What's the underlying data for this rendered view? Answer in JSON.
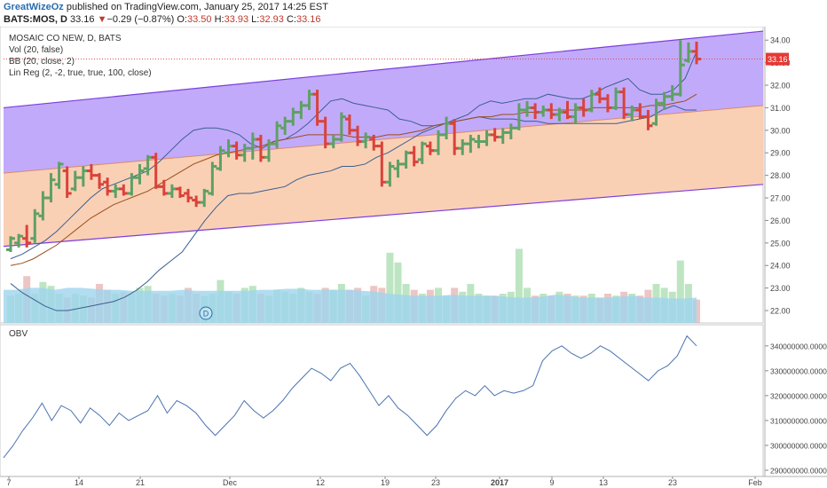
{
  "header": {
    "author": "GreatWizeOz",
    "published_text": "published on TradingView.com, January 25, 2017 14:25 EST",
    "symbol": "BATS:MOS, D",
    "last": "33.16",
    "change_arrow": "▼",
    "change": "−0.29 (−0.87%)",
    "o_label": "O:",
    "o_val": "33.50",
    "h_label": "H:",
    "h_val": "33.93",
    "l_label": "L:",
    "l_val": "32.93",
    "c_label": "C:",
    "c_val": "33.16"
  },
  "legend": {
    "title": "MOSAIC CO NEW, D, BATS",
    "vol": "Vol (20, false)",
    "bb": "BB (20, close, 2)",
    "linreg": "Lin Reg (2, -2, true, true, 100, close)"
  },
  "obv_label": "OBV",
  "dividend_marker": "D",
  "colors": {
    "up": "#5fa065",
    "down": "#d9433a",
    "upper_channel": "#b79bf9",
    "lower_channel": "#f9c8a8",
    "channel_line": "#7b3ee0",
    "bb_line": "#3a5f8f",
    "mid_line": "#9a4e1a",
    "vol_avg": "#9fd5ee",
    "obv_line": "#4a72b0",
    "price_tag": "#e53935"
  },
  "chart_data": [
    {
      "type": "candlestick",
      "title": "MOSAIC CO NEW, D, BATS",
      "x_tick_labels": [
        "7",
        "14",
        "21",
        "Dec",
        "12",
        "19",
        "23",
        "2017",
        "9",
        "13",
        "23",
        "Feb"
      ],
      "y_tick_labels": [
        "34.00",
        "33.00",
        "32.00",
        "31.00",
        "30.00",
        "29.00",
        "28.00",
        "27.00",
        "26.00",
        "25.00",
        "24.00",
        "23.00",
        "22.00"
      ],
      "ylim": [
        21.45,
        34.6
      ],
      "last_price_label": "33.16",
      "bars": [
        {
          "o": 24.7,
          "h": 25.3,
          "l": 24.6,
          "c": 25.2
        },
        {
          "o": 25.0,
          "h": 25.4,
          "l": 24.8,
          "c": 25.3
        },
        {
          "o": 25.2,
          "h": 25.8,
          "l": 24.8,
          "c": 25.0
        },
        {
          "o": 25.2,
          "h": 26.5,
          "l": 25.0,
          "c": 26.3
        },
        {
          "o": 26.2,
          "h": 27.3,
          "l": 26.0,
          "c": 27.0
        },
        {
          "o": 27.0,
          "h": 28.1,
          "l": 26.8,
          "c": 27.8
        },
        {
          "o": 27.6,
          "h": 28.6,
          "l": 27.4,
          "c": 28.5
        },
        {
          "o": 28.2,
          "h": 28.4,
          "l": 27.0,
          "c": 27.2
        },
        {
          "o": 27.4,
          "h": 28.2,
          "l": 27.3,
          "c": 27.9
        },
        {
          "o": 27.9,
          "h": 28.4,
          "l": 27.5,
          "c": 28.2
        },
        {
          "o": 28.2,
          "h": 28.5,
          "l": 27.8,
          "c": 28.0
        },
        {
          "o": 28.0,
          "h": 28.1,
          "l": 27.4,
          "c": 27.6
        },
        {
          "o": 27.7,
          "h": 27.9,
          "l": 27.1,
          "c": 27.3
        },
        {
          "o": 27.3,
          "h": 27.6,
          "l": 27.0,
          "c": 27.4
        },
        {
          "o": 27.4,
          "h": 27.6,
          "l": 27.1,
          "c": 27.2
        },
        {
          "o": 27.2,
          "h": 28.1,
          "l": 27.1,
          "c": 27.9
        },
        {
          "o": 27.9,
          "h": 28.5,
          "l": 27.6,
          "c": 28.2
        },
        {
          "o": 28.3,
          "h": 28.9,
          "l": 28.0,
          "c": 28.8
        },
        {
          "o": 28.8,
          "h": 29.0,
          "l": 27.4,
          "c": 27.5
        },
        {
          "o": 27.5,
          "h": 27.8,
          "l": 27.1,
          "c": 27.2
        },
        {
          "o": 27.2,
          "h": 27.6,
          "l": 27.0,
          "c": 27.4
        },
        {
          "o": 27.4,
          "h": 27.5,
          "l": 27.0,
          "c": 27.1
        },
        {
          "o": 27.2,
          "h": 27.4,
          "l": 26.8,
          "c": 27.0
        },
        {
          "o": 26.9,
          "h": 27.1,
          "l": 26.6,
          "c": 26.8
        },
        {
          "o": 26.8,
          "h": 27.4,
          "l": 26.6,
          "c": 27.3
        },
        {
          "o": 27.2,
          "h": 28.6,
          "l": 27.1,
          "c": 28.4
        },
        {
          "o": 28.3,
          "h": 29.3,
          "l": 28.2,
          "c": 29.1
        },
        {
          "o": 29.0,
          "h": 29.6,
          "l": 28.8,
          "c": 29.3
        },
        {
          "o": 29.3,
          "h": 29.5,
          "l": 28.7,
          "c": 28.9
        },
        {
          "o": 28.9,
          "h": 29.4,
          "l": 28.6,
          "c": 29.2
        },
        {
          "o": 29.2,
          "h": 29.9,
          "l": 28.7,
          "c": 29.6
        },
        {
          "o": 29.6,
          "h": 29.8,
          "l": 28.6,
          "c": 28.8
        },
        {
          "o": 28.8,
          "h": 29.6,
          "l": 28.6,
          "c": 29.4
        },
        {
          "o": 29.4,
          "h": 30.4,
          "l": 29.2,
          "c": 30.2
        },
        {
          "o": 30.1,
          "h": 30.6,
          "l": 29.8,
          "c": 30.4
        },
        {
          "o": 30.4,
          "h": 31.0,
          "l": 30.2,
          "c": 30.8
        },
        {
          "o": 30.8,
          "h": 31.3,
          "l": 30.5,
          "c": 31.1
        },
        {
          "o": 31.1,
          "h": 31.8,
          "l": 30.9,
          "c": 31.6
        },
        {
          "o": 31.6,
          "h": 31.8,
          "l": 30.2,
          "c": 30.4
        },
        {
          "o": 30.4,
          "h": 30.6,
          "l": 29.2,
          "c": 29.4
        },
        {
          "o": 29.4,
          "h": 29.8,
          "l": 29.2,
          "c": 29.6
        },
        {
          "o": 29.6,
          "h": 30.8,
          "l": 29.5,
          "c": 30.6
        },
        {
          "o": 30.5,
          "h": 30.7,
          "l": 29.8,
          "c": 30.0
        },
        {
          "o": 30.0,
          "h": 30.2,
          "l": 29.3,
          "c": 29.5
        },
        {
          "o": 29.5,
          "h": 29.9,
          "l": 29.2,
          "c": 29.7
        },
        {
          "o": 29.6,
          "h": 29.8,
          "l": 29.1,
          "c": 29.3
        },
        {
          "o": 29.3,
          "h": 29.5,
          "l": 27.5,
          "c": 27.7
        },
        {
          "o": 27.7,
          "h": 28.6,
          "l": 27.5,
          "c": 28.4
        },
        {
          "o": 28.3,
          "h": 28.7,
          "l": 27.9,
          "c": 28.5
        },
        {
          "o": 28.5,
          "h": 29.1,
          "l": 28.3,
          "c": 29.0
        },
        {
          "o": 29.0,
          "h": 29.3,
          "l": 28.4,
          "c": 28.6
        },
        {
          "o": 28.7,
          "h": 29.5,
          "l": 28.5,
          "c": 29.4
        },
        {
          "o": 29.3,
          "h": 29.5,
          "l": 28.9,
          "c": 29.1
        },
        {
          "o": 29.1,
          "h": 30.0,
          "l": 28.9,
          "c": 29.8
        },
        {
          "o": 29.8,
          "h": 30.6,
          "l": 29.6,
          "c": 30.3
        },
        {
          "o": 30.3,
          "h": 30.5,
          "l": 28.9,
          "c": 29.2
        },
        {
          "o": 29.2,
          "h": 29.6,
          "l": 28.9,
          "c": 29.4
        },
        {
          "o": 29.4,
          "h": 29.8,
          "l": 29.0,
          "c": 29.6
        },
        {
          "o": 29.5,
          "h": 29.8,
          "l": 29.2,
          "c": 29.5
        },
        {
          "o": 29.5,
          "h": 30.0,
          "l": 29.3,
          "c": 29.8
        },
        {
          "o": 29.8,
          "h": 30.1,
          "l": 29.5,
          "c": 29.7
        },
        {
          "o": 29.7,
          "h": 30.1,
          "l": 29.4,
          "c": 29.9
        },
        {
          "o": 29.9,
          "h": 30.3,
          "l": 29.6,
          "c": 30.1
        },
        {
          "o": 30.1,
          "h": 31.2,
          "l": 30.0,
          "c": 30.9
        },
        {
          "o": 30.9,
          "h": 31.3,
          "l": 30.6,
          "c": 31.0
        },
        {
          "o": 31.0,
          "h": 31.2,
          "l": 30.5,
          "c": 30.8
        },
        {
          "o": 30.8,
          "h": 31.1,
          "l": 30.6,
          "c": 30.9
        },
        {
          "o": 30.9,
          "h": 31.2,
          "l": 30.5,
          "c": 30.7
        },
        {
          "o": 30.7,
          "h": 31.0,
          "l": 30.4,
          "c": 30.8
        },
        {
          "o": 30.8,
          "h": 31.3,
          "l": 30.5,
          "c": 30.6
        },
        {
          "o": 30.6,
          "h": 31.2,
          "l": 30.3,
          "c": 31.0
        },
        {
          "o": 31.0,
          "h": 31.4,
          "l": 30.6,
          "c": 30.9
        },
        {
          "o": 30.9,
          "h": 31.8,
          "l": 30.8,
          "c": 31.6
        },
        {
          "o": 31.6,
          "h": 31.9,
          "l": 31.2,
          "c": 31.4
        },
        {
          "o": 31.4,
          "h": 31.6,
          "l": 30.8,
          "c": 31.0
        },
        {
          "o": 31.0,
          "h": 31.9,
          "l": 30.9,
          "c": 31.7
        },
        {
          "o": 31.7,
          "h": 31.9,
          "l": 30.5,
          "c": 30.7
        },
        {
          "o": 30.7,
          "h": 31.1,
          "l": 30.4,
          "c": 30.9
        },
        {
          "o": 30.9,
          "h": 31.2,
          "l": 30.5,
          "c": 30.6
        },
        {
          "o": 30.6,
          "h": 30.9,
          "l": 30.0,
          "c": 30.2
        },
        {
          "o": 30.3,
          "h": 31.4,
          "l": 30.2,
          "c": 31.2
        },
        {
          "o": 31.2,
          "h": 31.7,
          "l": 30.9,
          "c": 31.5
        },
        {
          "o": 31.5,
          "h": 32.0,
          "l": 31.3,
          "c": 31.6
        },
        {
          "o": 31.6,
          "h": 34.0,
          "l": 31.5,
          "c": 32.9
        },
        {
          "o": 33.1,
          "h": 33.9,
          "l": 33.0,
          "c": 33.5
        },
        {
          "o": 33.5,
          "h": 33.93,
          "l": 32.93,
          "c": 33.16
        }
      ],
      "lin_reg": {
        "upper": [
          31.0,
          34.4
        ],
        "mid": [
          28.1,
          31.1
        ],
        "lower": [
          24.85,
          27.6
        ]
      },
      "bb_upper": [
        24.3,
        24.5,
        24.8,
        25.1,
        25.5,
        26.0,
        26.5,
        27.0,
        27.4,
        27.6,
        27.8,
        28.0,
        28.2,
        28.6,
        29.1,
        29.6,
        30.0,
        30.1,
        30.1,
        30.0,
        29.8,
        29.4,
        29.2,
        29.5,
        29.6,
        29.9,
        30.3,
        30.8,
        31.3,
        31.4,
        31.2,
        31.1,
        31.0,
        30.9,
        30.5,
        30.4,
        30.2,
        30.2,
        30.3,
        30.5,
        30.7,
        31.1,
        31.3,
        31.2,
        31.3,
        31.4,
        31.4,
        31.6,
        31.5,
        31.4,
        31.4,
        31.6,
        31.9,
        32.1,
        32.3,
        31.8,
        31.6,
        31.6,
        31.8,
        32.3,
        33.5
      ],
      "bb_mid": [
        24.0,
        24.1,
        24.3,
        24.6,
        24.9,
        25.3,
        25.7,
        26.1,
        26.4,
        26.7,
        26.9,
        27.1,
        27.3,
        27.6,
        27.9,
        28.2,
        28.5,
        28.7,
        28.9,
        29.0,
        29.1,
        29.2,
        29.3,
        29.5,
        29.6,
        29.7,
        29.8,
        29.8,
        29.8,
        29.8,
        29.7,
        29.7,
        29.7,
        29.8,
        29.8,
        29.9,
        30.0,
        30.2,
        30.3,
        30.4,
        30.5,
        30.6,
        30.6,
        30.7,
        30.7,
        30.8,
        30.8,
        30.9,
        30.9,
        30.9,
        30.9,
        31.0,
        31.0,
        31.0,
        31.0,
        31.0,
        31.1,
        31.1,
        31.2,
        31.3,
        31.6
      ],
      "bb_lower": [
        23.2,
        22.8,
        22.5,
        22.2,
        22.0,
        22.0,
        22.1,
        22.2,
        22.3,
        22.4,
        22.6,
        22.9,
        23.3,
        23.8,
        24.2,
        24.6,
        25.3,
        26.0,
        26.6,
        27.1,
        27.2,
        27.2,
        27.3,
        27.4,
        27.5,
        27.8,
        28.0,
        28.1,
        28.2,
        28.4,
        28.4,
        28.5,
        28.8,
        29.0,
        29.3,
        29.6,
        29.9,
        30.1,
        30.3,
        30.4,
        30.5,
        30.6,
        30.5,
        30.5,
        30.5,
        30.4,
        30.4,
        30.3,
        30.3,
        30.3,
        30.3,
        30.3,
        30.3,
        30.3,
        30.4,
        30.5,
        30.6,
        30.9,
        31.1,
        30.9,
        30.9
      ],
      "volume_pct": [
        0.28,
        0.3,
        0.48,
        0.3,
        0.42,
        0.38,
        0.3,
        0.26,
        0.3,
        0.28,
        0.26,
        0.4,
        0.34,
        0.3,
        0.32,
        0.3,
        0.36,
        0.38,
        0.3,
        0.28,
        0.3,
        0.28,
        0.36,
        0.3,
        0.28,
        0.3,
        0.44,
        0.32,
        0.3,
        0.36,
        0.38,
        0.3,
        0.28,
        0.34,
        0.32,
        0.3,
        0.36,
        0.32,
        0.3,
        0.36,
        0.34,
        0.4,
        0.34,
        0.36,
        0.28,
        0.38,
        0.36,
        0.72,
        0.62,
        0.4,
        0.34,
        0.3,
        0.34,
        0.36,
        0.28,
        0.36,
        0.32,
        0.4,
        0.3,
        0.28,
        0.28,
        0.3,
        0.32,
        0.76,
        0.36,
        0.28,
        0.3,
        0.28,
        0.32,
        0.3,
        0.28,
        0.28,
        0.3,
        0.26,
        0.3,
        0.28,
        0.32,
        0.3,
        0.28,
        0.34,
        0.4,
        0.36,
        0.32,
        0.64,
        0.4,
        0.24
      ],
      "volume_avg_pct": [
        0.34,
        0.34,
        0.36,
        0.36,
        0.34,
        0.36,
        0.36,
        0.35,
        0.34,
        0.34,
        0.33,
        0.33,
        0.33,
        0.33,
        0.34,
        0.33,
        0.33,
        0.33,
        0.33,
        0.33,
        0.34,
        0.34,
        0.35,
        0.35,
        0.34,
        0.34,
        0.34,
        0.34,
        0.33,
        0.32,
        0.3,
        0.29,
        0.28,
        0.28,
        0.28,
        0.29,
        0.28,
        0.28,
        0.28,
        0.27,
        0.26,
        0.26,
        0.27,
        0.29,
        0.28,
        0.26,
        0.26,
        0.26,
        0.27,
        0.28,
        0.26,
        0.26,
        0.25,
        0.25,
        0.26
      ]
    },
    {
      "type": "line",
      "title": "OBV",
      "y_tick_labels": [
        "340000000.0000",
        "330000000.0000",
        "320000000.0000",
        "310000000.0000",
        "300000000.0000",
        "290000000.0000"
      ],
      "ylim": [
        287500000,
        348500000
      ],
      "values": [
        295000000,
        300000000,
        306000000,
        311000000,
        317000000,
        310000000,
        316000000,
        314000000,
        309000000,
        315000000,
        312000000,
        308000000,
        313000000,
        310000000,
        312000000,
        314000000,
        320000000,
        313000000,
        318000000,
        316000000,
        313000000,
        308000000,
        304000000,
        308000000,
        312000000,
        318000000,
        314000000,
        311000000,
        314000000,
        318000000,
        323000000,
        327000000,
        331000000,
        329000000,
        326000000,
        331000000,
        333000000,
        328000000,
        322000000,
        316000000,
        320000000,
        315000000,
        312000000,
        308000000,
        304000000,
        308000000,
        314000000,
        319000000,
        322000000,
        320000000,
        324000000,
        320000000,
        322000000,
        321000000,
        322000000,
        324000000,
        334000000,
        338000000,
        340000000,
        337000000,
        335000000,
        337000000,
        340000000,
        338000000,
        335000000,
        332000000,
        329000000,
        326000000,
        330000000,
        332000000,
        336000000,
        344000000,
        340000000
      ]
    }
  ]
}
